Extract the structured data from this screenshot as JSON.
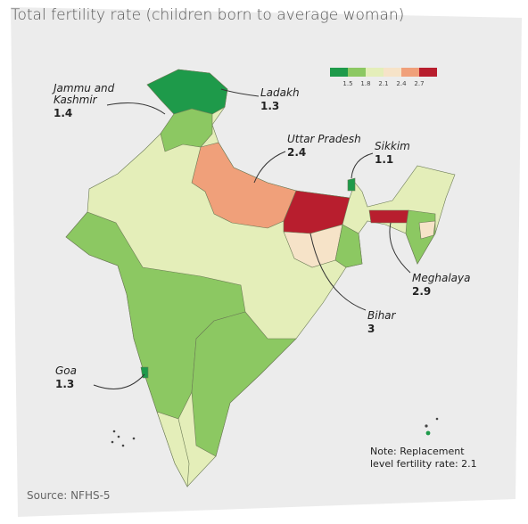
{
  "title": "Total fertility rate (children born to average woman)",
  "legend": {
    "colors": [
      "#1e9a4a",
      "#8cc862",
      "#e4eeb9",
      "#f6e3c8",
      "#f0a07a",
      "#b81e2e"
    ],
    "ticks": [
      1.5,
      1.8,
      2.1,
      2.4,
      2.7
    ]
  },
  "annotations": [
    {
      "lines": [
        "Jammu and",
        "Kashmir"
      ],
      "value": 1.4
    },
    {
      "lines": [
        "Ladakh"
      ],
      "value": 1.3
    },
    {
      "lines": [
        "Uttar Pradesh"
      ],
      "value": 2.4
    },
    {
      "lines": [
        "Sikkim"
      ],
      "value": 1.1
    },
    {
      "lines": [
        "Meghalaya"
      ],
      "value": 2.9
    },
    {
      "lines": [
        "Bihar"
      ],
      "value": 3
    },
    {
      "lines": [
        "Goa"
      ],
      "value": 1.3
    }
  ],
  "note": [
    "Note: Replacement",
    "level fertility rate: 2.1"
  ],
  "source": "Source: NFHS-5"
}
